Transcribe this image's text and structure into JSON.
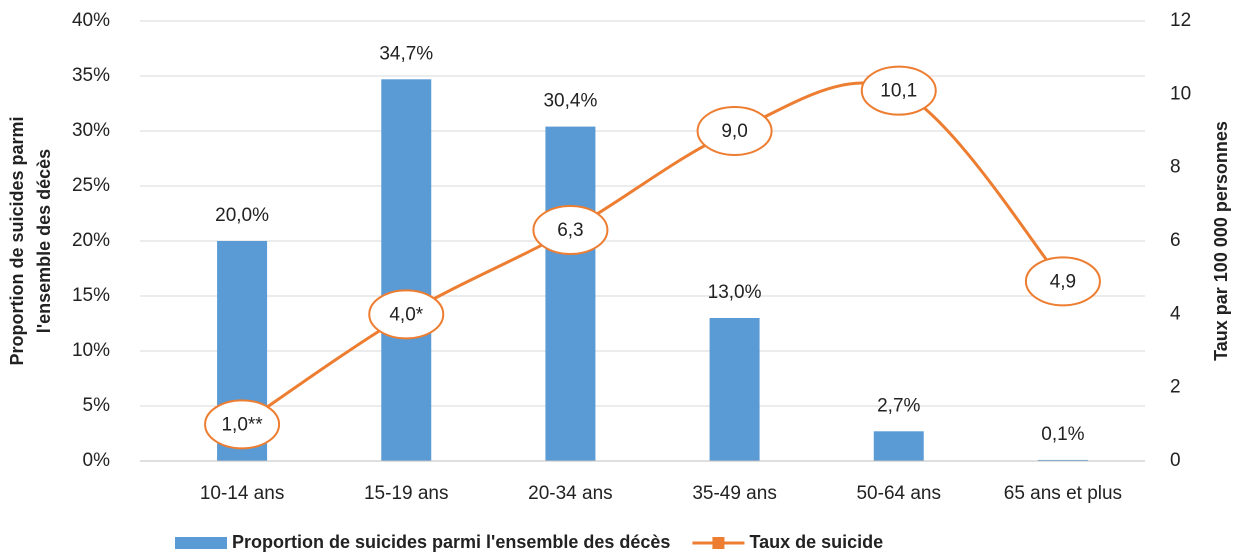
{
  "chart_data": {
    "type": "combo",
    "categories": [
      "10-14 ans",
      "15-19 ans",
      "20-34 ans",
      "35-49 ans",
      "50-64 ans",
      "65 ans et plus"
    ],
    "series": [
      {
        "name": "Proportion de suicides parmi l'ensemble des décès",
        "type": "bar",
        "color": "#5b9bd5",
        "values": [
          20.0,
          34.7,
          30.4,
          13.0,
          2.7,
          0.1
        ],
        "value_labels": [
          "20,0%",
          "34,7%",
          "30,4%",
          "13,0%",
          "2,7%",
          "0,1%"
        ]
      },
      {
        "name": "Taux de suicide",
        "type": "line",
        "axis": "y2",
        "color": "#ed7d31",
        "values": [
          1.0,
          4.0,
          6.3,
          9.0,
          10.1,
          4.9
        ],
        "value_labels": [
          "1,0**",
          "4,0*",
          "6,3",
          "9,0",
          "10,1",
          "4,9"
        ]
      }
    ],
    "y_label": [
      "Proportion de suicides parmi",
      "l'ensemble des décès"
    ],
    "y2_label": "Taux par 100 000 personnes",
    "ylim": [
      0,
      40
    ],
    "yticks": [
      {
        "value": 0,
        "label": "0%"
      },
      {
        "value": 5,
        "label": "5%"
      },
      {
        "value": 10,
        "label": "10%"
      },
      {
        "value": 15,
        "label": "15%"
      },
      {
        "value": 20,
        "label": "20%"
      },
      {
        "value": 25,
        "label": "25%"
      },
      {
        "value": 30,
        "label": "30%"
      },
      {
        "value": 35,
        "label": "35%"
      },
      {
        "value": 40,
        "label": "40%"
      }
    ],
    "y2lim": [
      0,
      12
    ],
    "y2ticks": [
      0,
      2,
      4,
      6,
      8,
      10,
      12
    ],
    "grid": true,
    "legend": "bottom"
  }
}
